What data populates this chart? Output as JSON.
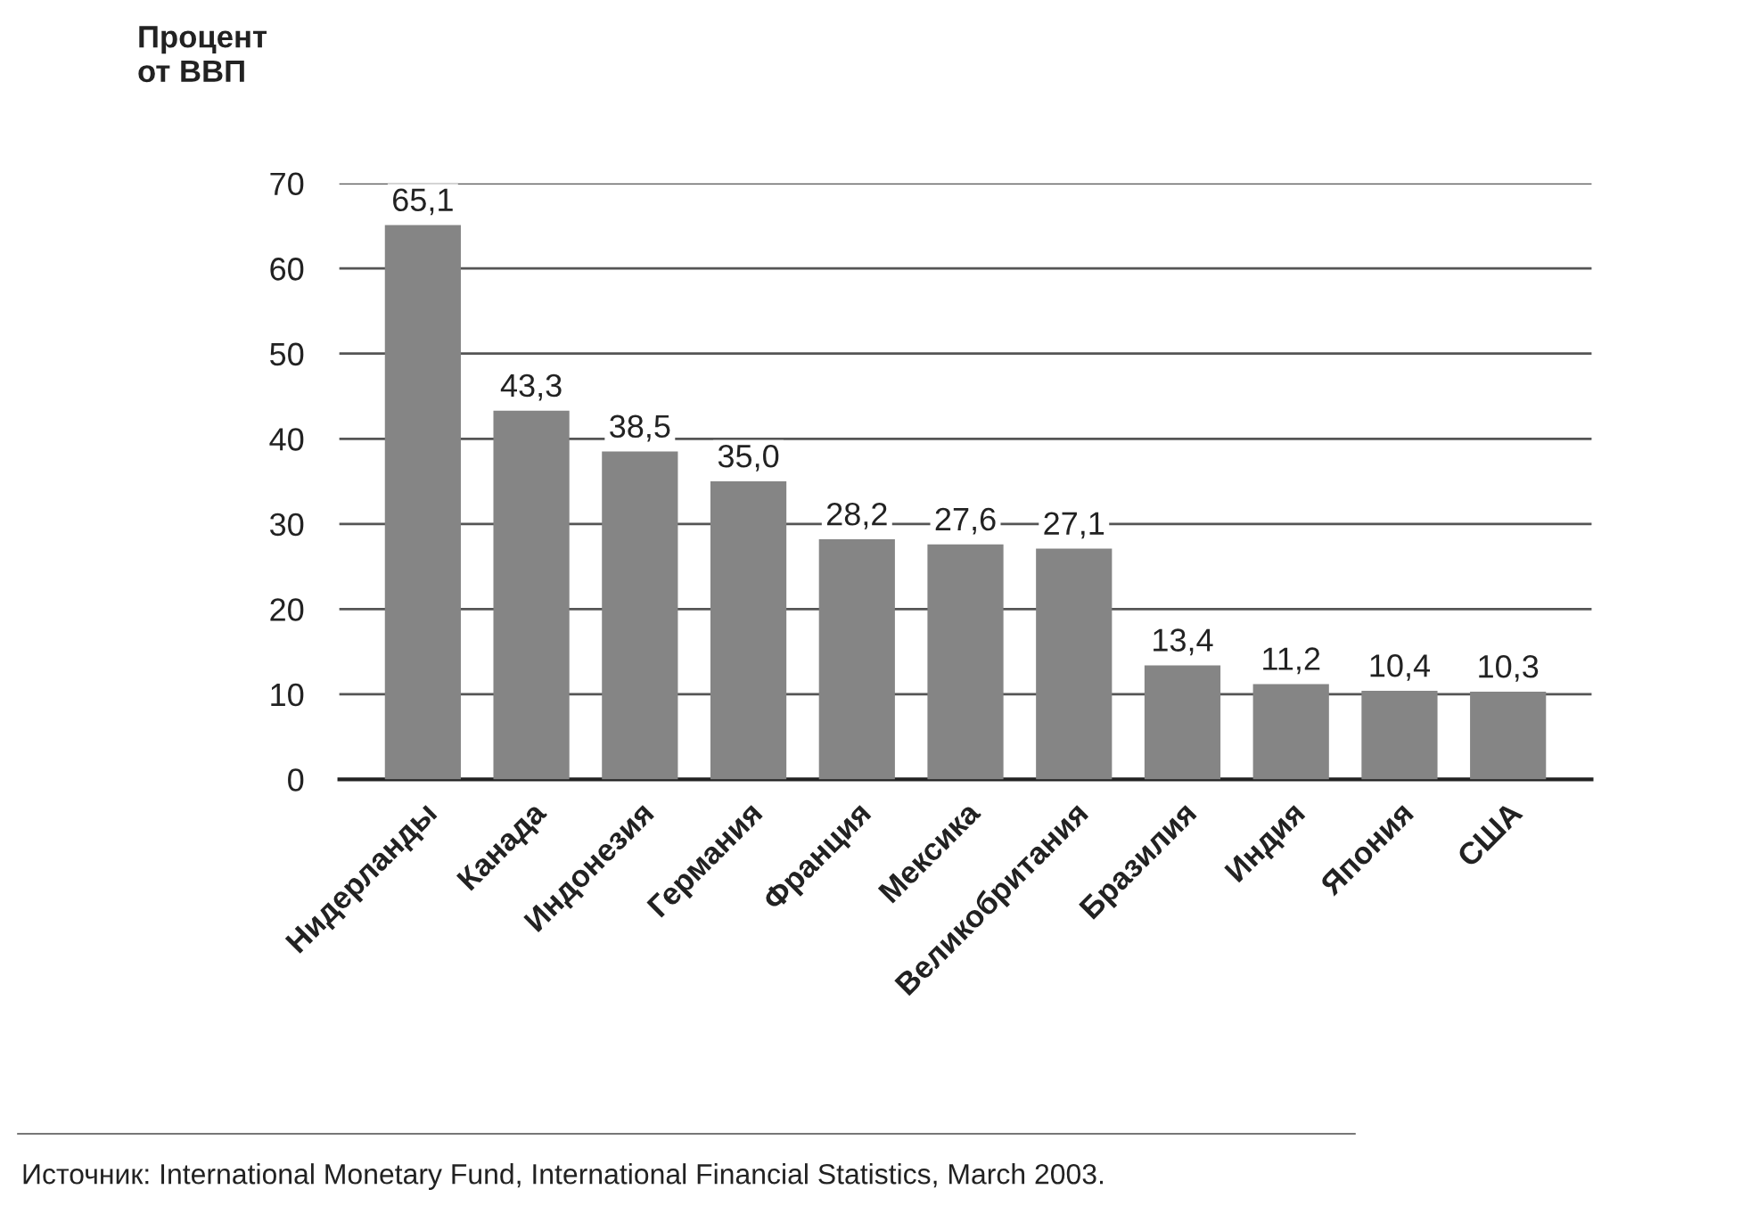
{
  "chart_data": {
    "type": "bar",
    "ylabel": "Процент\nот ВВП",
    "categories": [
      "Нидерланды",
      "Канада",
      "Индонезия",
      "Германия",
      "Франция",
      "Мексика",
      "Великобритания",
      "Бразилия",
      "Индия",
      "Япония",
      "США"
    ],
    "values": [
      65.1,
      43.3,
      38.5,
      35.0,
      28.2,
      27.6,
      27.1,
      13.4,
      11.2,
      10.4,
      10.3
    ],
    "value_labels": [
      "65,1",
      "43,3",
      "38,5",
      "35,0",
      "28,2",
      "27,6",
      "27,1",
      "13,4",
      "11,2",
      "10,4",
      "10,3"
    ],
    "color": "#858585",
    "ylim": [
      0,
      70
    ],
    "yticks": [
      0,
      10,
      20,
      30,
      40,
      50,
      60,
      70
    ],
    "grid": "y",
    "annotations": [
      "Источник: International Monetary Fund, International Financial Statistics, March 2003."
    ]
  }
}
